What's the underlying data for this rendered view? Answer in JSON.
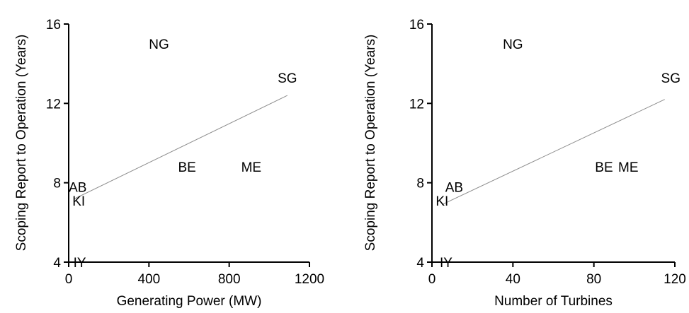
{
  "chart_data": [
    {
      "type": "scatter",
      "xlabel": "Generating Power (MW)",
      "ylabel": "Scoping Report to Operation (Years)",
      "xlim": [
        0,
        1200
      ],
      "ylim": [
        4,
        16
      ],
      "xticks": [
        "0",
        "400",
        "800",
        "1200"
      ],
      "yticks": [
        "4",
        "8",
        "12",
        "16"
      ],
      "grid": false,
      "points": [
        {
          "label": "NG",
          "x": 450,
          "y": 15.0
        },
        {
          "label": "SG",
          "x": 1090,
          "y": 13.3
        },
        {
          "label": "BE",
          "x": 590,
          "y": 8.8
        },
        {
          "label": "ME",
          "x": 910,
          "y": 8.8
        },
        {
          "label": "AB",
          "x": 45,
          "y": 7.8
        },
        {
          "label": "KI",
          "x": 50,
          "y": 7.1
        },
        {
          "label": "IY",
          "x": 55,
          "y": 4.0
        }
      ],
      "trendline": {
        "x1": 30,
        "y1": 7.2,
        "x2": 1090,
        "y2": 12.4
      }
    },
    {
      "type": "scatter",
      "xlabel": "Number of Turbines",
      "ylabel": "Scoping Report to Operation (Years)",
      "xlim": [
        0,
        120
      ],
      "ylim": [
        4,
        16
      ],
      "xticks": [
        "0",
        "40",
        "80",
        "120"
      ],
      "yticks": [
        "4",
        "8",
        "12",
        "16"
      ],
      "grid": false,
      "points": [
        {
          "label": "NG",
          "x": 40,
          "y": 15.0
        },
        {
          "label": "SG",
          "x": 118,
          "y": 13.3
        },
        {
          "label": "BE",
          "x": 85,
          "y": 8.8
        },
        {
          "label": "ME",
          "x": 97,
          "y": 8.8
        },
        {
          "label": "AB",
          "x": 11,
          "y": 7.8
        },
        {
          "label": "KI",
          "x": 5,
          "y": 7.1
        },
        {
          "label": "IY",
          "x": 7,
          "y": 4.0
        }
      ],
      "trendline": {
        "x1": 5,
        "y1": 6.9,
        "x2": 115,
        "y2": 12.2
      }
    }
  ]
}
